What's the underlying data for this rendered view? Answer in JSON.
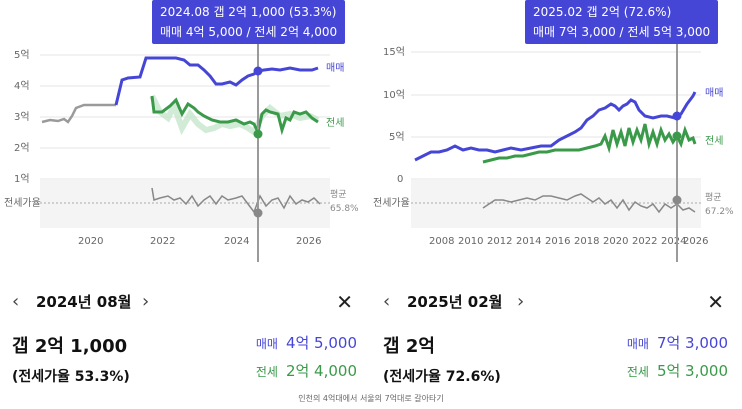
{
  "left": {
    "tooltip": {
      "line1": "2024.08  갭 2억 1,000 (53.3%)",
      "line2": "매매 4억 5,000 / 전세 2억 4,000"
    },
    "y_ticks": [
      "5억",
      "4억",
      "3억",
      "2억",
      "1억"
    ],
    "ratio_axis_label": "전세가율",
    "x_ticks": [
      "2020",
      "2022",
      "2024",
      "2026"
    ],
    "series_labels": {
      "sale": "매매",
      "jeonse": "전세"
    },
    "avg_label": "평균",
    "avg_value": "65.8%",
    "month": "2024년 08월",
    "gap": "갭 2억 1,000",
    "ratio": "(전세가율 53.3%)",
    "sale_label": "매매",
    "sale_value": "4억 5,000",
    "jeonse_label": "전세",
    "jeonse_value": "2억 4,000"
  },
  "right": {
    "tooltip": {
      "line1": "2025.02  갭 2억 (72.6%)",
      "line2": "매매 7억 3,000 / 전세 5억 3,000"
    },
    "y_ticks": [
      "15억",
      "10억",
      "5억",
      "0"
    ],
    "ratio_axis_label": "전세가율",
    "x_ticks": [
      "2008",
      "2010",
      "2012",
      "2014",
      "2016",
      "2018",
      "2020",
      "2022",
      "2024",
      "2026"
    ],
    "series_labels": {
      "sale": "매매",
      "jeonse": "전세"
    },
    "avg_label": "평균",
    "avg_value": "67.2%",
    "month": "2025년 02월",
    "gap": "갭 2억",
    "ratio": "(전세가율 72.6%)",
    "sale_label": "매매",
    "sale_value": "7억 3,000",
    "jeonse_label": "전세",
    "jeonse_value": "5억 3,000"
  },
  "colors": {
    "sale": "#4646d6",
    "jeonse": "#3a9a4a",
    "ratio": "#888888",
    "pre": "#9a9a9a"
  },
  "icons": {
    "prev": "chevron-left-icon",
    "next": "chevron-right-icon",
    "close": "close-icon"
  },
  "footnote": "인천의 4억대에서 서울의 7억대로 갈아타기"
}
